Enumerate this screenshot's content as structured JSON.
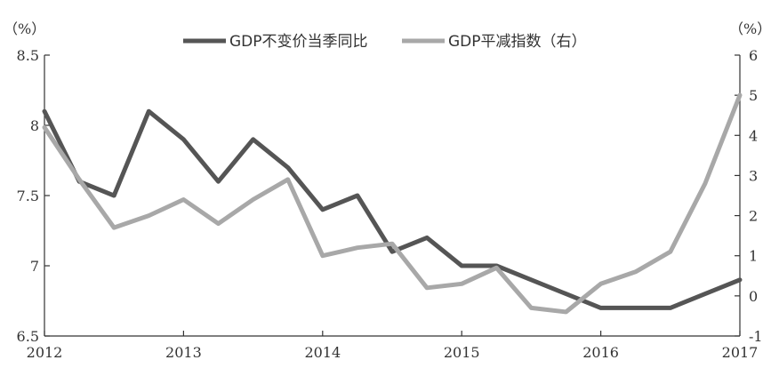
{
  "chart_data": {
    "type": "line",
    "x": [
      "2012Q1",
      "2012Q2",
      "2012Q3",
      "2012Q4",
      "2013Q1",
      "2013Q2",
      "2013Q3",
      "2013Q4",
      "2014Q1",
      "2014Q2",
      "2014Q3",
      "2014Q4",
      "2015Q1",
      "2015Q2",
      "2015Q3",
      "2015Q4",
      "2016Q1",
      "2016Q2",
      "2016Q3",
      "2016Q4",
      "2017Q1"
    ],
    "x_tick_labels": [
      "2012",
      "2013",
      "2014",
      "2015",
      "2016",
      "2017"
    ],
    "left_unit": "（%）",
    "right_unit": "（%）",
    "left_ylim": [
      6.5,
      8.5
    ],
    "left_ticks": [
      "6.5",
      "7",
      "7.5",
      "8",
      "8.5"
    ],
    "right_ylim": [
      -1,
      6
    ],
    "right_ticks": [
      "-1",
      "0",
      "1",
      "2",
      "3",
      "4",
      "5",
      "6"
    ],
    "legend_position": "top",
    "series": [
      {
        "name": "GDP不变价当季同比",
        "axis": "left",
        "color": "#555555",
        "values": [
          8.1,
          7.6,
          7.5,
          8.1,
          7.9,
          7.6,
          7.9,
          7.7,
          7.4,
          7.5,
          7.1,
          7.2,
          7.0,
          7.0,
          6.9,
          6.8,
          6.7,
          6.7,
          6.7,
          6.8,
          6.9
        ]
      },
      {
        "name": "GDP平减指数（右）",
        "axis": "right",
        "color": "#a8a8a8",
        "values": [
          4.2,
          2.9,
          1.7,
          2.0,
          2.4,
          1.8,
          2.4,
          2.9,
          1.0,
          1.2,
          1.3,
          0.2,
          0.3,
          0.7,
          -0.3,
          -0.4,
          0.3,
          0.6,
          1.1,
          2.8,
          5.0
        ]
      }
    ]
  }
}
